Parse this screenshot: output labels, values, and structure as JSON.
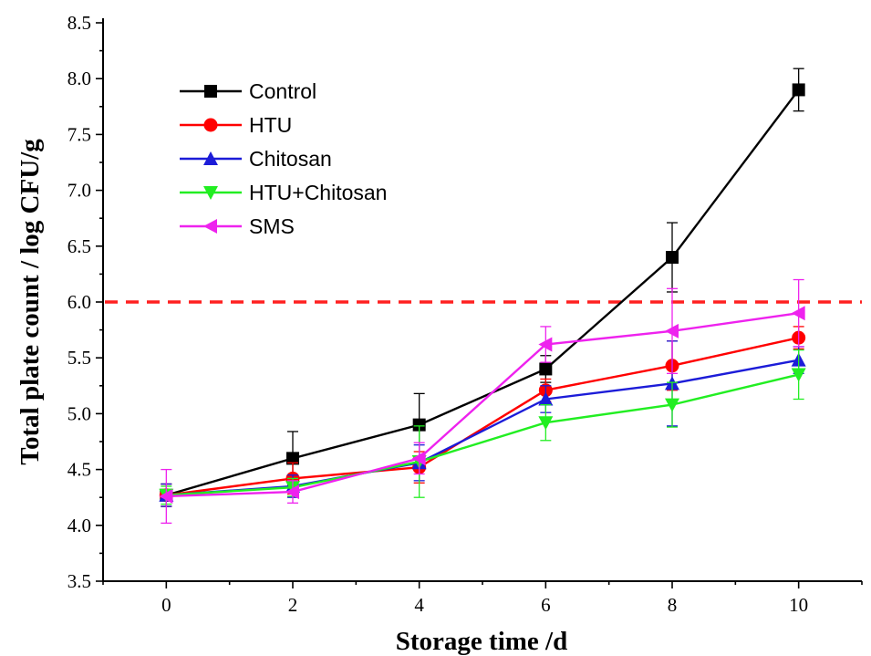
{
  "chart_data": {
    "type": "line",
    "xlabel": "Storage time /d",
    "ylabel": "Total plate count / log CFU/g",
    "xlim": [
      -1,
      11
    ],
    "ylim": [
      3.5,
      8.5
    ],
    "x_ticks": [
      0,
      2,
      4,
      6,
      8,
      10
    ],
    "y_ticks": [
      3.5,
      4.0,
      4.5,
      5.0,
      5.5,
      6.0,
      6.5,
      7.0,
      7.5,
      8.0,
      8.5
    ],
    "x_tick_labels": [
      "0",
      "2",
      "4",
      "6",
      "8",
      "10"
    ],
    "y_tick_labels": [
      "3.5",
      "4.0",
      "4.5",
      "5.0",
      "5.5",
      "6.0",
      "6.5",
      "7.0",
      "7.5",
      "8.0",
      "8.5"
    ],
    "grid": false,
    "legend": "top-left",
    "x": [
      0,
      2,
      4,
      6,
      8,
      10
    ],
    "reference_line": {
      "y": 6.0,
      "color": "#ff2020",
      "style": "dashed"
    },
    "series": [
      {
        "name": "Control",
        "color": "#000000",
        "marker": "square",
        "values": [
          4.27,
          4.6,
          4.9,
          5.4,
          6.4,
          7.9
        ],
        "error": [
          0.1,
          0.24,
          0.28,
          0.12,
          0.31,
          0.19
        ]
      },
      {
        "name": "HTU",
        "color": "#ff0000",
        "marker": "circle",
        "values": [
          4.27,
          4.42,
          4.52,
          5.21,
          5.43,
          5.68
        ],
        "error": [
          0.1,
          0.14,
          0.14,
          0.1,
          0.22,
          0.1
        ]
      },
      {
        "name": "Chitosan",
        "color": "#1c1cd8",
        "marker": "triangle-up",
        "values": [
          4.27,
          4.35,
          4.56,
          5.13,
          5.27,
          5.48
        ],
        "error": [
          0.1,
          0.1,
          0.16,
          0.12,
          0.38,
          0.12
        ]
      },
      {
        "name": "HTU+Chitosan",
        "color": "#22ee22",
        "marker": "triangle-down",
        "values": [
          4.27,
          4.34,
          4.57,
          4.92,
          5.08,
          5.35
        ],
        "error": [
          0.08,
          0.08,
          0.32,
          0.16,
          0.2,
          0.22
        ]
      },
      {
        "name": "SMS",
        "color": "#ee22ee",
        "marker": "triangle-left",
        "values": [
          4.26,
          4.3,
          4.6,
          5.62,
          5.74,
          5.9
        ],
        "error": [
          0.24,
          0.1,
          0.14,
          0.16,
          0.38,
          0.3
        ]
      }
    ]
  }
}
